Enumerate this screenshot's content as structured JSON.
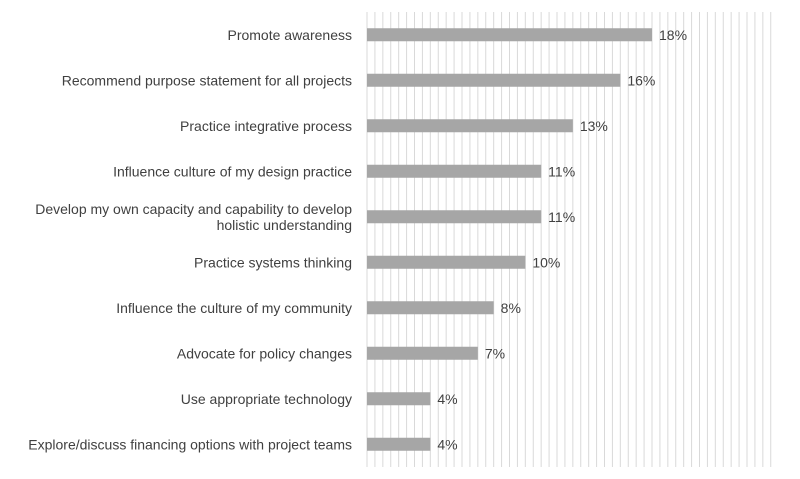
{
  "chart_data": {
    "type": "bar",
    "orientation": "horizontal",
    "categories": [
      "Promote awareness",
      "Recommend purpose statement for all projects",
      "Practice integrative process",
      "Influence culture of my design practice",
      "Develop my own capacity and capability to develop holistic understanding",
      "Practice systems thinking",
      "Influence the culture of my community",
      "Advocate for policy changes",
      "Use appropriate technology",
      "Explore/discuss financing options with project teams"
    ],
    "category_lines": [
      [
        "Promote awareness"
      ],
      [
        "Recommend purpose statement for all projects"
      ],
      [
        "Practice integrative process"
      ],
      [
        "Influence culture of my design practice"
      ],
      [
        "Develop my own capacity and capability to develop",
        "holistic understanding"
      ],
      [
        "Practice systems thinking"
      ],
      [
        "Influence the culture of my community"
      ],
      [
        "Advocate for policy changes"
      ],
      [
        "Use appropriate technology"
      ],
      [
        "Explore/discuss financing options with project teams"
      ]
    ],
    "values": [
      18,
      16,
      13,
      11,
      11,
      10,
      8,
      7,
      4,
      4
    ],
    "value_labels": [
      "18%",
      "16%",
      "13%",
      "11%",
      "11%",
      "10%",
      "8%",
      "7%",
      "4%",
      "4%"
    ],
    "xlim": [
      0,
      18
    ],
    "grid": true,
    "legend": "none",
    "bar_color": "#a6a6a6",
    "grid_color": "#d9d9d9",
    "text_color": "#404040"
  }
}
